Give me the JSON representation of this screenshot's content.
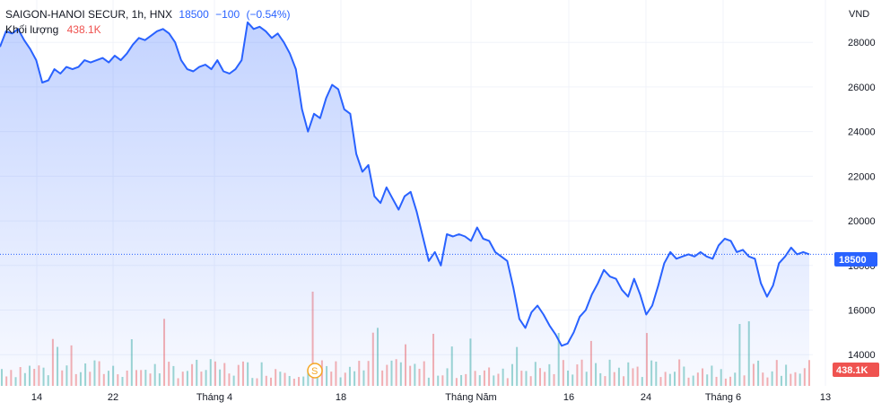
{
  "legend": {
    "symbol": "SAIGON-HANOI SECUR, 1h, HNX",
    "last": "18500",
    "change": "−100",
    "change_pct": "(−0.54%)",
    "volume_label": "Khối lượng",
    "volume_value": "438.1K"
  },
  "currency": "VND",
  "price_badge": "18500",
  "volume_badge": "438.1K",
  "split_marker": "S",
  "colors": {
    "line": "#2962ff",
    "up": "#26a69a",
    "down": "#ef5350",
    "badge": "#2962ff",
    "vol_badge": "#ef5350"
  },
  "chart_data": {
    "type": "area",
    "y_ticks": [
      14000,
      16000,
      18000,
      20000,
      22000,
      24000,
      26000,
      28000
    ],
    "ylim": [
      12600,
      29900
    ],
    "x_ticks": [
      "14",
      "22",
      "Tháng 4",
      "18",
      "Tháng Năm",
      "16",
      "24",
      "Tháng 6",
      "13"
    ],
    "last_price": 18500,
    "series": [
      {
        "values": [
          27800,
          28500,
          28400,
          28600,
          28100,
          27700,
          27200,
          26200,
          26300,
          26800,
          26600,
          26900,
          26800,
          26900,
          27200,
          27100,
          27200,
          27300,
          27100,
          27400,
          27200,
          27500,
          27900,
          28200,
          28100,
          28300,
          28500,
          28600,
          28400,
          28000,
          27200,
          26800,
          26700,
          26900,
          27000,
          26800,
          27200,
          26700,
          26600,
          26800,
          27200,
          28900,
          28600,
          28700,
          28500,
          28200,
          28400,
          28000,
          27500,
          26800,
          25000,
          24000,
          24800,
          24600,
          25500,
          26100,
          25900,
          25000,
          24800,
          23000,
          22200,
          22500,
          21100,
          20800,
          21500,
          21000,
          20500,
          21100,
          21300,
          20400,
          19300,
          18200,
          18600,
          18000,
          19400,
          19300,
          19400,
          19300,
          19100,
          19700,
          19200,
          19100,
          18600,
          18400,
          18200,
          17000,
          15600,
          15200,
          15900,
          16200,
          15800,
          15300,
          14900,
          14400,
          14500,
          15000,
          15700,
          16000,
          16700,
          17200,
          17800,
          17500,
          17400,
          16900,
          16600,
          17400,
          16700,
          15800,
          16200,
          17100,
          18100,
          18600,
          18300,
          18400,
          18500,
          18400,
          18600,
          18400,
          18300,
          18900,
          19200,
          19100,
          18600,
          18700,
          18400,
          18300,
          17200,
          16600,
          17100,
          18100,
          18400,
          18800,
          18500,
          18600,
          18500
        ]
      }
    ],
    "volume": [
      1,
      0,
      0,
      1,
      0,
      1,
      1,
      0,
      0,
      1,
      1,
      0,
      1,
      0,
      1,
      0,
      0,
      1,
      1,
      0,
      1,
      0,
      0,
      1,
      1,
      0,
      1,
      0,
      1,
      0,
      0,
      1,
      0,
      1,
      1,
      0,
      0,
      1,
      0,
      0,
      1,
      0,
      1,
      0,
      1,
      1,
      0,
      1,
      0,
      0,
      1,
      0,
      0,
      1,
      1,
      0,
      1,
      0,
      0,
      0,
      1,
      0,
      1,
      0,
      0,
      1,
      1,
      0,
      1,
      0,
      1,
      0,
      0,
      1,
      0,
      1,
      1,
      0,
      1,
      0,
      0,
      1,
      0,
      0,
      1,
      0,
      1,
      0,
      0,
      1,
      0,
      0,
      1,
      0,
      1,
      0,
      1,
      1,
      0,
      1,
      0,
      1,
      0,
      1,
      0,
      0,
      1,
      0,
      1,
      0,
      1,
      1,
      0,
      1,
      0,
      1,
      0,
      0,
      1,
      0,
      1,
      0,
      1,
      1,
      0,
      0,
      1,
      0,
      1,
      1,
      0,
      1,
      0,
      1,
      0
    ]
  }
}
